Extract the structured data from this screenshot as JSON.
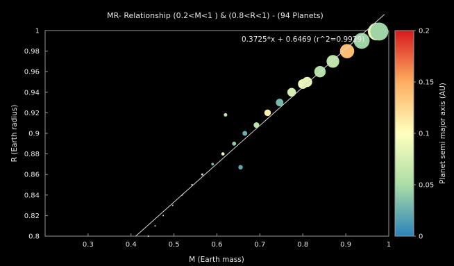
{
  "chart_data": {
    "type": "scatter",
    "title": "MR- Relationship (0.2<M<1 ) & (0.8<R<1) - (94 Planets)",
    "xlabel": "M (Earth mass)",
    "ylabel": "R (Earth radius)",
    "xlim": [
      0.2,
      1.0
    ],
    "ylim": [
      0.8,
      1.0
    ],
    "x_ticks": [
      "0.3",
      "0.4",
      "0.5",
      "0.6",
      "0.7",
      "0.8",
      "0.9",
      "1"
    ],
    "y_ticks": [
      "0.8",
      "0.82",
      "0.84",
      "0.86",
      "0.88",
      "0.9",
      "0.92",
      "0.94",
      "0.96",
      "0.98",
      "1"
    ],
    "grid": false,
    "colorbar": {
      "label": "Planet semi major axis (AU)",
      "range": [
        0,
        0.2
      ],
      "ticks": [
        "0",
        "0.05",
        "0.1",
        "0.15",
        "0.2"
      ],
      "colors": [
        "#2b83ba",
        "#abdda4",
        "#ffffbf",
        "#fdae61",
        "#d7191c"
      ]
    },
    "fit": {
      "label": "0.3725*x + 0.6469 (r^2=0.9929)",
      "slope": 0.3725,
      "intercept": 0.6469,
      "x_range": [
        0.411,
        0.99
      ]
    },
    "points": [
      {
        "x": 0.44,
        "y": 0.8,
        "c": 0.09
      },
      {
        "x": 0.456,
        "y": 0.81,
        "c": 0.09
      },
      {
        "x": 0.475,
        "y": 0.82,
        "c": 0.085
      },
      {
        "x": 0.497,
        "y": 0.83,
        "c": 0.07
      },
      {
        "x": 0.52,
        "y": 0.84,
        "c": 0.045
      },
      {
        "x": 0.542,
        "y": 0.85,
        "c": 0.07
      },
      {
        "x": 0.566,
        "y": 0.86,
        "c": 0.06
      },
      {
        "x": 0.59,
        "y": 0.87,
        "c": 0.03
      },
      {
        "x": 0.614,
        "y": 0.88,
        "c": 0.09
      },
      {
        "x": 0.64,
        "y": 0.89,
        "c": 0.04
      },
      {
        "x": 0.665,
        "y": 0.9,
        "c": 0.025
      },
      {
        "x": 0.692,
        "y": 0.908,
        "c": 0.06
      },
      {
        "x": 0.718,
        "y": 0.92,
        "c": 0.11
      },
      {
        "x": 0.746,
        "y": 0.93,
        "c": 0.03
      },
      {
        "x": 0.774,
        "y": 0.94,
        "c": 0.075
      },
      {
        "x": 0.8,
        "y": 0.948,
        "c": 0.09
      },
      {
        "x": 0.81,
        "y": 0.95,
        "c": 0.085
      },
      {
        "x": 0.84,
        "y": 0.96,
        "c": 0.055
      },
      {
        "x": 0.87,
        "y": 0.97,
        "c": 0.06
      },
      {
        "x": 0.903,
        "y": 0.98,
        "c": 0.14
      },
      {
        "x": 0.937,
        "y": 0.99,
        "c": 0.045
      },
      {
        "x": 0.972,
        "y": 0.999,
        "c": 0.09
      },
      {
        "x": 0.978,
        "y": 0.999,
        "c": 0.045
      },
      {
        "x": 0.62,
        "y": 0.918,
        "c": 0.06
      },
      {
        "x": 0.655,
        "y": 0.867,
        "c": 0.02
      }
    ]
  }
}
